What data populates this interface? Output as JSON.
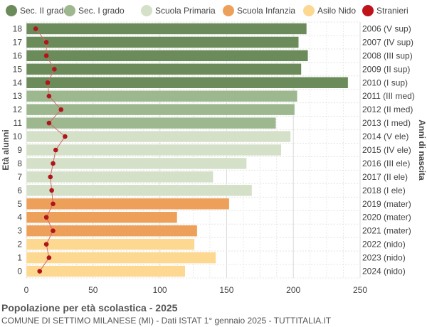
{
  "chart_data": {
    "type": "bar",
    "orientation": "horizontal",
    "title": "Popolazione per età scolastica - 2025",
    "subtitle": "COMUNE DI SETTIMO MILANESE (MI) - Dati ISTAT 1° gennaio 2025 - TUTTITALIA.IT",
    "ylabel_left": "Età alunni",
    "ylabel_right": "Anni di nascita",
    "xlim": [
      0,
      250
    ],
    "xticks": [
      0,
      50,
      100,
      150,
      200,
      250
    ],
    "grid": true,
    "legend_position": "top",
    "legend": [
      {
        "name": "Sec. II grado",
        "color": "#6b8c5a"
      },
      {
        "name": "Sec. I grado",
        "color": "#9db88f"
      },
      {
        "name": "Scuola Primaria",
        "color": "#d4e0c8"
      },
      {
        "name": "Scuola Infanzia",
        "color": "#eda05a"
      },
      {
        "name": "Asilo Nido",
        "color": "#fcd890"
      },
      {
        "name": "Stranieri",
        "color": "#c0121a"
      }
    ],
    "rows": [
      {
        "age": "18",
        "birth": "2006 (V sup)",
        "value": 210,
        "stranieri": 7,
        "group": 0
      },
      {
        "age": "17",
        "birth": "2007 (IV sup)",
        "value": 204,
        "stranieri": 15,
        "group": 0
      },
      {
        "age": "16",
        "birth": "2008 (III sup)",
        "value": 211,
        "stranieri": 15,
        "group": 0
      },
      {
        "age": "15",
        "birth": "2009 (II sup)",
        "value": 206,
        "stranieri": 21,
        "group": 0
      },
      {
        "age": "14",
        "birth": "2010 (I sup)",
        "value": 241,
        "stranieri": 16,
        "group": 0
      },
      {
        "age": "13",
        "birth": "2011 (III med)",
        "value": 203,
        "stranieri": 17,
        "group": 1
      },
      {
        "age": "12",
        "birth": "2012 (II med)",
        "value": 201,
        "stranieri": 26,
        "group": 1
      },
      {
        "age": "11",
        "birth": "2013 (I med)",
        "value": 187,
        "stranieri": 17,
        "group": 1
      },
      {
        "age": "10",
        "birth": "2014 (V ele)",
        "value": 198,
        "stranieri": 29,
        "group": 2
      },
      {
        "age": "9",
        "birth": "2015 (IV ele)",
        "value": 191,
        "stranieri": 22,
        "group": 2
      },
      {
        "age": "8",
        "birth": "2016 (III ele)",
        "value": 165,
        "stranieri": 20,
        "group": 2
      },
      {
        "age": "7",
        "birth": "2017 (II ele)",
        "value": 140,
        "stranieri": 18,
        "group": 2
      },
      {
        "age": "6",
        "birth": "2018 (I ele)",
        "value": 169,
        "stranieri": 19,
        "group": 2
      },
      {
        "age": "5",
        "birth": "2019 (mater)",
        "value": 152,
        "stranieri": 20,
        "group": 3
      },
      {
        "age": "4",
        "birth": "2020 (mater)",
        "value": 113,
        "stranieri": 15,
        "group": 3
      },
      {
        "age": "3",
        "birth": "2021 (mater)",
        "value": 128,
        "stranieri": 20,
        "group": 3
      },
      {
        "age": "2",
        "birth": "2022 (nido)",
        "value": 126,
        "stranieri": 15,
        "group": 4
      },
      {
        "age": "1",
        "birth": "2023 (nido)",
        "value": 142,
        "stranieri": 17,
        "group": 4
      },
      {
        "age": "0",
        "birth": "2024 (nido)",
        "value": 119,
        "stranieri": 10,
        "group": 4
      }
    ]
  }
}
